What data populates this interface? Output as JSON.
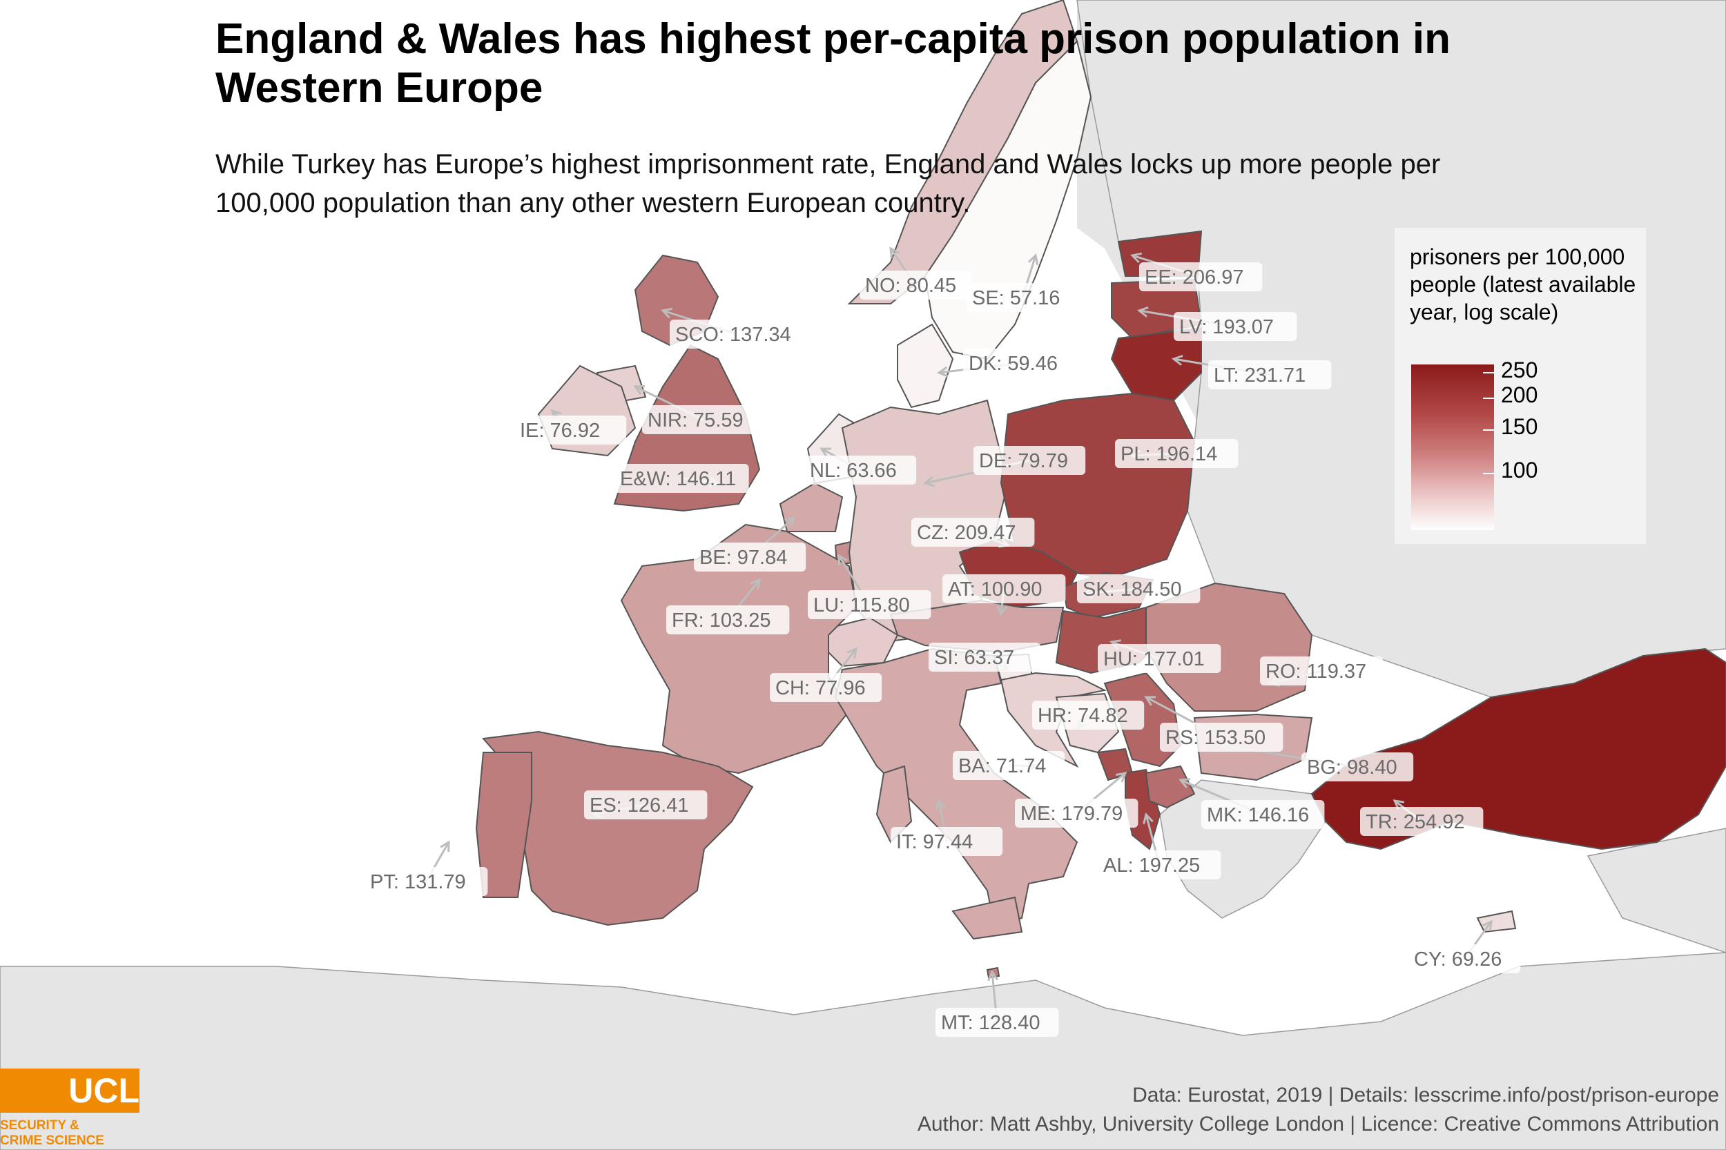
{
  "title": "England & Wales has highest per-capita prison population in Western Europe",
  "subtitle": "While Turkey has Europe’s highest imprisonment rate, England and Wales locks up more people per 100,000 population than any other western European country.",
  "legend": {
    "title": "prisoners per 100,000 people (latest available year, log scale)",
    "ticks": [
      "250",
      "200",
      "150",
      "100"
    ],
    "tick_values": [
      250,
      200,
      150,
      100
    ],
    "scale": "log",
    "color_low": "#ffffff",
    "color_high": "#8b1a1a"
  },
  "footer": {
    "line1": "Data: Eurostat, 2019 |  Details: lesscrime.info/post/prison-europe",
    "line2": "Author: Matt Ashby, University College London |  Licence: Creative Commons Attribution"
  },
  "logo": {
    "mark": "UCL",
    "line1": "SECURITY &",
    "line2": "CRIME SCIENCE"
  },
  "colors": {
    "sea": "#ffffff",
    "no_data_land": "#e5e5e5",
    "border": "#555555",
    "leader_arrow": "#bdbdbd"
  },
  "regions": [
    {
      "code": "TR",
      "value": 254.92,
      "label": "TR: 254.92"
    },
    {
      "code": "LT",
      "value": 231.71,
      "label": "LT: 231.71"
    },
    {
      "code": "CZ",
      "value": 209.47,
      "label": "CZ: 209.47"
    },
    {
      "code": "EE",
      "value": 206.97,
      "label": "EE: 206.97"
    },
    {
      "code": "AL",
      "value": 197.25,
      "label": "AL: 197.25"
    },
    {
      "code": "PL",
      "value": 196.14,
      "label": "PL: 196.14"
    },
    {
      "code": "LV",
      "value": 193.07,
      "label": "LV: 193.07"
    },
    {
      "code": "SK",
      "value": 184.5,
      "label": "SK: 184.50"
    },
    {
      "code": "ME",
      "value": 179.79,
      "label": "ME: 179.79"
    },
    {
      "code": "HU",
      "value": 177.01,
      "label": "HU: 177.01"
    },
    {
      "code": "RS",
      "value": 153.5,
      "label": "RS: 153.50"
    },
    {
      "code": "MK",
      "value": 146.16,
      "label": "MK: 146.16"
    },
    {
      "code": "E&W",
      "value": 146.11,
      "label": "E&W: 146.11"
    },
    {
      "code": "SCO",
      "value": 137.34,
      "label": "SCO: 137.34"
    },
    {
      "code": "PT",
      "value": 131.79,
      "label": "PT: 131.79"
    },
    {
      "code": "MT",
      "value": 128.4,
      "label": "MT: 128.40"
    },
    {
      "code": "ES",
      "value": 126.41,
      "label": "ES: 126.41"
    },
    {
      "code": "RO",
      "value": 119.37,
      "label": "RO: 119.37"
    },
    {
      "code": "LU",
      "value": 115.8,
      "label": "LU: 115.80"
    },
    {
      "code": "FR",
      "value": 103.25,
      "label": "FR: 103.25"
    },
    {
      "code": "AT",
      "value": 100.9,
      "label": "AT: 100.90"
    },
    {
      "code": "BG",
      "value": 98.4,
      "label": "BG: 98.40"
    },
    {
      "code": "BE",
      "value": 97.84,
      "label": "BE: 97.84"
    },
    {
      "code": "IT",
      "value": 97.44,
      "label": "IT: 97.44"
    },
    {
      "code": "NO",
      "value": 80.45,
      "label": "NO: 80.45"
    },
    {
      "code": "DE",
      "value": 79.79,
      "label": "DE: 79.79"
    },
    {
      "code": "CH",
      "value": 77.96,
      "label": "CH: 77.96"
    },
    {
      "code": "IE",
      "value": 76.92,
      "label": "IE: 76.92"
    },
    {
      "code": "NIR",
      "value": 75.59,
      "label": "NIR: 75.59"
    },
    {
      "code": "HR",
      "value": 74.82,
      "label": "HR: 74.82"
    },
    {
      "code": "BA",
      "value": 71.74,
      "label": "BA: 71.74"
    },
    {
      "code": "CY",
      "value": 69.26,
      "label": "CY: 69.26"
    },
    {
      "code": "NL",
      "value": 63.66,
      "label": "NL: 63.66"
    },
    {
      "code": "SI",
      "value": 63.37,
      "label": "SI: 63.37"
    },
    {
      "code": "DK",
      "value": 59.46,
      "label": "DK: 59.46"
    },
    {
      "code": "SE",
      "value": 57.16,
      "label": "SE: 57.16"
    }
  ]
}
